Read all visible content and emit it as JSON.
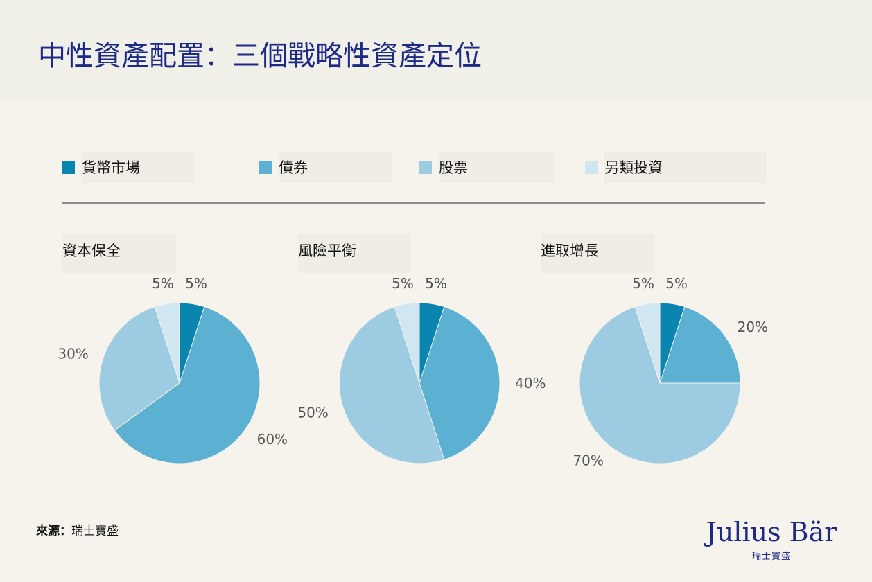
{
  "title": "中性資產配置：三個戰略性資產定位",
  "legend": [
    {
      "label": "貨幣市場",
      "color": "#0a85b0"
    },
    {
      "label": "債券",
      "color": "#5cb0d1"
    },
    {
      "label": "股票",
      "color": "#9ccbe2"
    },
    {
      "label": "另類投資",
      "color": "#d0e6f1"
    }
  ],
  "chart_data": [
    {
      "type": "pie",
      "title": "資本保全",
      "labels": [
        "貨幣市場",
        "債券",
        "股票",
        "另類投資"
      ],
      "values": [
        5,
        60,
        30,
        5
      ],
      "value_labels": [
        "5%",
        "60%",
        "30%",
        "5%"
      ]
    },
    {
      "type": "pie",
      "title": "風險平衡",
      "labels": [
        "貨幣市場",
        "債券",
        "股票",
        "另類投資"
      ],
      "values": [
        5,
        40,
        50,
        5
      ],
      "value_labels": [
        "5%",
        "40%",
        "50%",
        "5%"
      ]
    },
    {
      "type": "pie",
      "title": "進取增長",
      "labels": [
        "貨幣市場",
        "債券",
        "股票",
        "另類投資"
      ],
      "values": [
        5,
        20,
        70,
        5
      ],
      "value_labels": [
        "5%",
        "20%",
        "70%",
        "5%"
      ]
    }
  ],
  "footer": {
    "source_label": "來源：",
    "source_value": "瑞士寶盛",
    "logo_name": "Julius Bär",
    "logo_sub": "瑞士寶盛"
  }
}
